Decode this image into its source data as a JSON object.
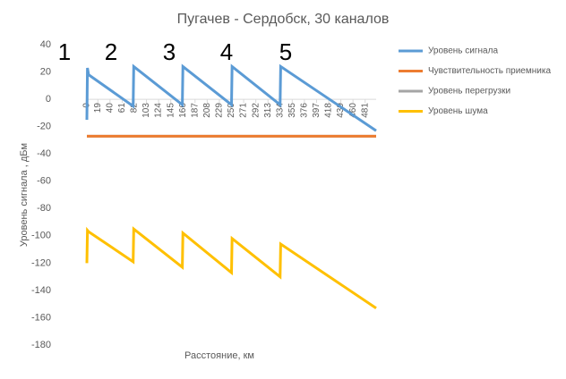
{
  "chart_data": {
    "type": "line",
    "title": "Пугачев - Сердобск, 30 каналов",
    "x_label": "Расстояние, км",
    "y_label": "Уровень сигнала , дБм",
    "annotations": [
      "1",
      "2",
      "3",
      "4",
      "5"
    ],
    "x": [
      0,
      1,
      3,
      80,
      81,
      165,
      166,
      250,
      251,
      334,
      335,
      500
    ],
    "series": [
      {
        "name": "Уровень сигнала",
        "color": "#5b9bd5",
        "values": [
          -15,
          23,
          18,
          -5,
          24,
          -4,
          24,
          -4,
          24,
          -4,
          24,
          -23
        ]
      },
      {
        "name": "Чувствительность приемника",
        "color": "#ed7d31",
        "values": [
          -27,
          -27,
          -27,
          -27,
          -27,
          -27,
          -27,
          -27,
          -27,
          -27,
          -27,
          -27
        ]
      },
      {
        "name": "Уровень перегрузки",
        "color": "#a5a5a5",
        "values": [
          -27,
          -27,
          -27,
          -27,
          -27,
          -27,
          -27,
          -27,
          -27,
          -27,
          -27,
          -27
        ]
      },
      {
        "name": "Уровень шума",
        "color": "#ffc000",
        "values": [
          -120,
          -96,
          -97,
          -119,
          -95,
          -123,
          -98,
          -127,
          -102,
          -130,
          -106,
          -153
        ]
      }
    ],
    "xlim": [
      0,
      500
    ],
    "xticks": [
      0,
      19,
      40,
      61,
      82,
      103,
      124,
      145,
      166,
      187,
      208,
      229,
      250,
      271,
      292,
      313,
      334,
      355,
      376,
      397,
      418,
      439,
      460,
      481
    ],
    "ylim": [
      -180,
      40
    ],
    "yticks": [
      -180,
      -160,
      -140,
      -120,
      -100,
      -80,
      -60,
      -40,
      -20,
      0,
      20,
      40
    ],
    "grid": false
  }
}
